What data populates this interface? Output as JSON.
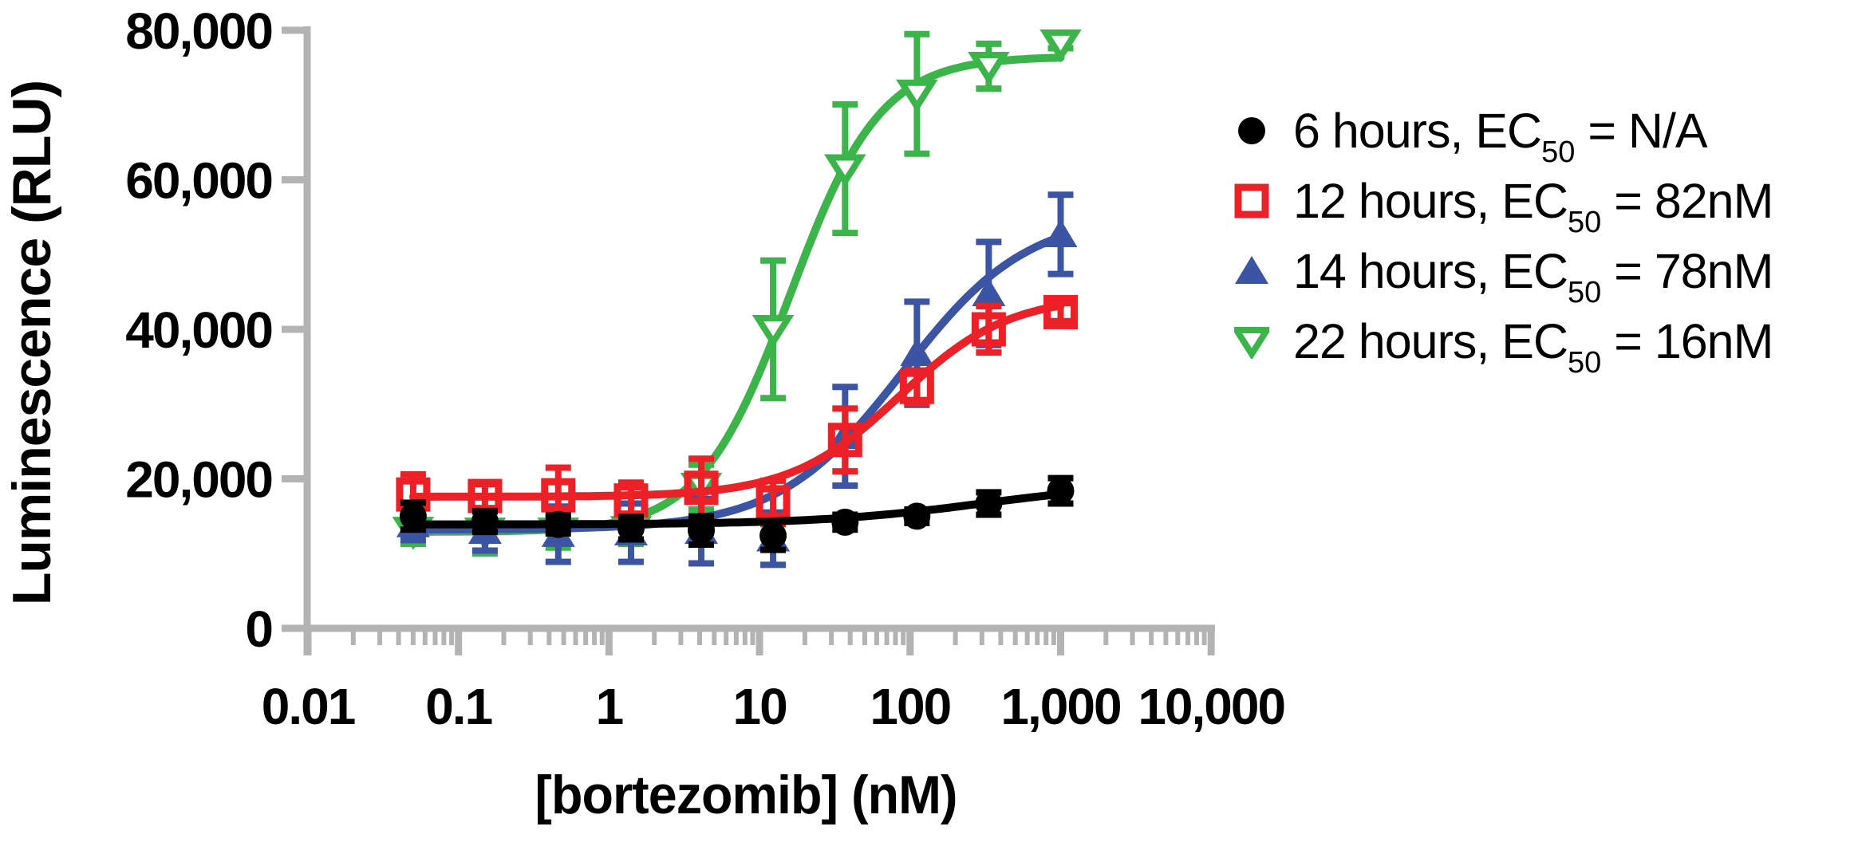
{
  "chart_data": {
    "type": "scatter-line",
    "title": "",
    "xlabel": "[bortezomib] (nM)",
    "ylabel": "Luminescence (RLU)",
    "x_scale": "log",
    "x_range": [
      0.01,
      10000
    ],
    "y_range": [
      0,
      80000
    ],
    "grid": "off",
    "legend_position": "right",
    "axis_color": "#b3b3b3",
    "text_color": "#000000",
    "x_ticks": [
      {
        "value": 0.01,
        "label": "0.01"
      },
      {
        "value": 0.1,
        "label": "0.1"
      },
      {
        "value": 1,
        "label": "1"
      },
      {
        "value": 10,
        "label": "10"
      },
      {
        "value": 100,
        "label": "100"
      },
      {
        "value": 1000,
        "label": "1,000"
      },
      {
        "value": 10000,
        "label": "10,000"
      }
    ],
    "y_ticks": [
      {
        "value": 0,
        "label": "0"
      },
      {
        "value": 20000,
        "label": "20,000"
      },
      {
        "value": 40000,
        "label": "40,000"
      },
      {
        "value": 60000,
        "label": "60,000"
      },
      {
        "value": 80000,
        "label": "80,000"
      }
    ],
    "x_nM": [
      0.05,
      0.15,
      0.46,
      1.4,
      4.1,
      12.3,
      37,
      111,
      333,
      1000
    ],
    "series": [
      {
        "name": "6 hours",
        "hours": 6,
        "ec50_nM": null,
        "legend": {
          "prefix": "6 hours, EC",
          "sub": "50",
          "suffix": " = N/A"
        },
        "color": "#000000",
        "marker": "circle-filled",
        "values": [
          15000,
          14300,
          13900,
          13400,
          13100,
          12400,
          14200,
          15000,
          16700,
          18400
        ],
        "errors": [
          1800,
          1400,
          1200,
          1500,
          1900,
          1900,
          1000,
          900,
          1500,
          1700
        ],
        "fit": {
          "bottom": 13900,
          "top": 19500,
          "ec50": 300,
          "hill": 0.8
        }
      },
      {
        "name": "12 hours",
        "hours": 12,
        "ec50_nM": 82,
        "legend": {
          "prefix": "12 hours, EC",
          "sub": "50",
          "suffix": " = 82nM"
        },
        "color": "#ec2027",
        "marker": "square-open",
        "values": [
          17900,
          17700,
          17800,
          17100,
          18800,
          16850,
          25200,
          32300,
          40000,
          42300
        ],
        "errors": [
          2700,
          1600,
          3700,
          2400,
          3900,
          2900,
          4200,
          2200,
          3100,
          1200
        ],
        "fit": {
          "bottom": 17600,
          "top": 44500,
          "ec50": 85,
          "hill": 1.2
        }
      },
      {
        "name": "14 hours",
        "hours": 14,
        "ec50_nM": 78,
        "legend": {
          "prefix": "14 hours, EC",
          "sub": "50",
          "suffix": " = 78nM"
        },
        "color": "#3b54a4",
        "marker": "triangle-filled",
        "values": [
          13900,
          13000,
          12600,
          12800,
          13000,
          12000,
          25700,
          36800,
          44800,
          52700
        ],
        "errors": [
          2100,
          2600,
          3700,
          3900,
          4300,
          3500,
          6600,
          6900,
          6900,
          5300
        ],
        "fit": {
          "bottom": 13200,
          "top": 55500,
          "ec50": 90,
          "hill": 1.05
        }
      },
      {
        "name": "22 hours",
        "hours": 22,
        "ec50_nM": 16,
        "legend": {
          "prefix": "22 hours, EC",
          "sub": "50",
          "suffix": " = 16nM"
        },
        "color": "#3bb54a",
        "marker": "triangle-down-open",
        "values": [
          13000,
          12900,
          12900,
          13100,
          18900,
          40000,
          61500,
          71500,
          75200,
          78200
        ],
        "errors": [
          1700,
          2900,
          2100,
          1800,
          3000,
          9200,
          8600,
          8000,
          3000,
          600
        ],
        "fit": {
          "bottom": 12900,
          "top": 76500,
          "ec50": 16,
          "hill": 1.45
        }
      }
    ]
  }
}
